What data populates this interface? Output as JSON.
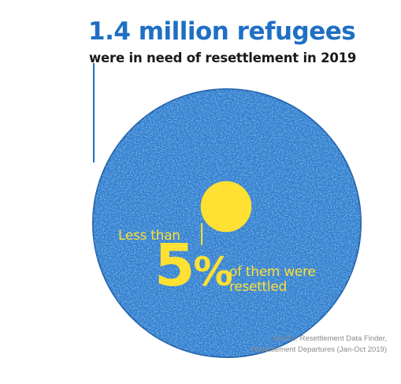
{
  "chart_data": {
    "type": "proportional-area",
    "title": "1.4 million refugees",
    "subtitle": "were in need of resettlement in 2019",
    "total": {
      "value": 1400000,
      "color": "#2f7fd0"
    },
    "part": {
      "percent": 5,
      "qualifier": "Less than",
      "color": "#ffe033"
    },
    "annotation": {
      "prefix": "Less than",
      "value_text": "5",
      "unit_text": "%",
      "suffix_line1": "of them were",
      "suffix_line2": "resettled"
    },
    "source_line1": "Source: Resettlement Data Finder,",
    "source_line2": "Resettlement Departures (Jan-Oct 2019)"
  },
  "colors": {
    "headline": "#1f6fc4",
    "subtitle": "#1a1a1a",
    "circle": "#2f7fd0",
    "circle_dark": "#1e62ad",
    "circle_light": "#6aa8e6",
    "highlight": "#ffe033",
    "source": "#8a8a8a"
  }
}
